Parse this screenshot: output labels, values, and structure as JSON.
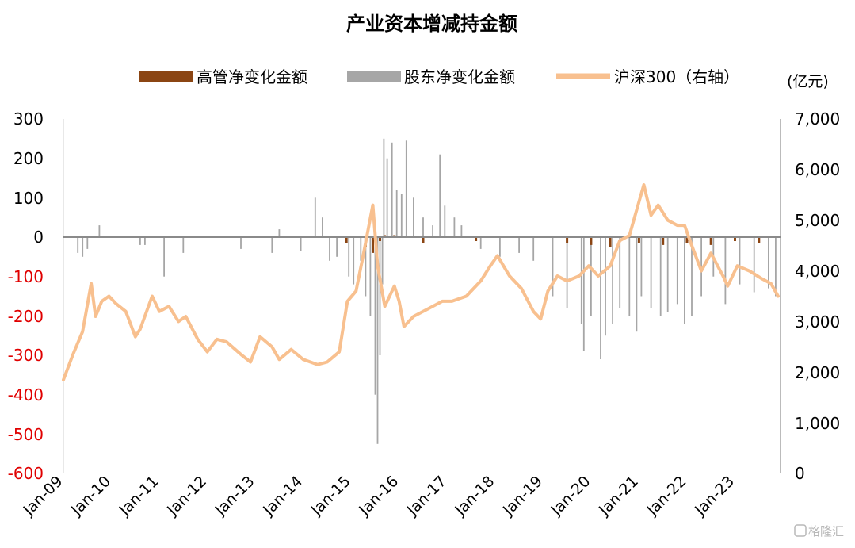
{
  "chart_data": {
    "type": "bar+line",
    "title": "产业资本增减持金额",
    "unit_label": "(亿元)",
    "legend": [
      {
        "label": "高管净变化金额",
        "kind": "bar",
        "color": "#8B4513"
      },
      {
        "label": "股东净变化金额",
        "kind": "bar",
        "color": "#A6A6A6"
      },
      {
        "label": "沪深300（右轴）",
        "kind": "line",
        "color": "#F8C08F"
      }
    ],
    "y_left": {
      "min": -600,
      "max": 300,
      "ticks": [
        300,
        200,
        100,
        0,
        -100,
        -200,
        -300,
        -400,
        -500,
        -600
      ],
      "negative_color": "#E00000"
    },
    "y_right": {
      "min": 0,
      "max": 7000,
      "ticks": [
        "7,000",
        "6,000",
        "5,000",
        "4,000",
        "3,000",
        "2,000",
        "1,000",
        "0"
      ]
    },
    "x_ticks": [
      "Jan-09",
      "Jan-10",
      "Jan-11",
      "Jan-12",
      "Jan-13",
      "Jan-14",
      "Jan-15",
      "Jan-16",
      "Jan-17",
      "Jan-18",
      "Jan-19",
      "Jan-20",
      "Jan-21",
      "Jan-22",
      "Jan-23"
    ],
    "series": [
      {
        "name": "沪深300（右轴）",
        "axis": "right",
        "points": [
          [
            2009.0,
            1850
          ],
          [
            2009.2,
            2350
          ],
          [
            2009.4,
            2800
          ],
          [
            2009.58,
            3750
          ],
          [
            2009.67,
            3100
          ],
          [
            2009.8,
            3400
          ],
          [
            2009.95,
            3500
          ],
          [
            2010.1,
            3350
          ],
          [
            2010.3,
            3200
          ],
          [
            2010.5,
            2700
          ],
          [
            2010.6,
            2850
          ],
          [
            2010.85,
            3500
          ],
          [
            2011.0,
            3200
          ],
          [
            2011.2,
            3300
          ],
          [
            2011.4,
            3000
          ],
          [
            2011.55,
            3100
          ],
          [
            2011.8,
            2650
          ],
          [
            2012.0,
            2400
          ],
          [
            2012.2,
            2650
          ],
          [
            2012.4,
            2600
          ],
          [
            2012.7,
            2350
          ],
          [
            2012.9,
            2200
          ],
          [
            2013.1,
            2700
          ],
          [
            2013.35,
            2500
          ],
          [
            2013.5,
            2250
          ],
          [
            2013.75,
            2450
          ],
          [
            2014.0,
            2250
          ],
          [
            2014.3,
            2150
          ],
          [
            2014.5,
            2200
          ],
          [
            2014.75,
            2400
          ],
          [
            2014.92,
            3400
          ],
          [
            2015.1,
            3600
          ],
          [
            2015.25,
            4300
          ],
          [
            2015.45,
            5300
          ],
          [
            2015.55,
            4100
          ],
          [
            2015.7,
            3300
          ],
          [
            2015.9,
            3700
          ],
          [
            2016.0,
            3400
          ],
          [
            2016.1,
            2900
          ],
          [
            2016.3,
            3100
          ],
          [
            2016.6,
            3250
          ],
          [
            2016.9,
            3400
          ],
          [
            2017.1,
            3400
          ],
          [
            2017.4,
            3500
          ],
          [
            2017.7,
            3800
          ],
          [
            2017.9,
            4100
          ],
          [
            2018.05,
            4300
          ],
          [
            2018.3,
            3900
          ],
          [
            2018.55,
            3650
          ],
          [
            2018.8,
            3200
          ],
          [
            2018.95,
            3050
          ],
          [
            2019.1,
            3600
          ],
          [
            2019.3,
            3900
          ],
          [
            2019.5,
            3800
          ],
          [
            2019.75,
            3900
          ],
          [
            2019.95,
            4100
          ],
          [
            2020.15,
            3900
          ],
          [
            2020.4,
            4100
          ],
          [
            2020.6,
            4600
          ],
          [
            2020.8,
            4700
          ],
          [
            2020.95,
            5200
          ],
          [
            2021.1,
            5700
          ],
          [
            2021.25,
            5100
          ],
          [
            2021.4,
            5300
          ],
          [
            2021.6,
            5000
          ],
          [
            2021.8,
            4900
          ],
          [
            2021.95,
            4900
          ],
          [
            2022.1,
            4500
          ],
          [
            2022.3,
            4000
          ],
          [
            2022.5,
            4350
          ],
          [
            2022.75,
            3900
          ],
          [
            2022.85,
            3700
          ],
          [
            2023.05,
            4100
          ],
          [
            2023.3,
            4000
          ],
          [
            2023.55,
            3850
          ],
          [
            2023.75,
            3750
          ],
          [
            2023.9,
            3500
          ]
        ]
      },
      {
        "name": "股东净变化金额",
        "axis": "left",
        "spikes": [
          [
            2009.3,
            -40
          ],
          [
            2009.4,
            -50
          ],
          [
            2009.5,
            -30
          ],
          [
            2009.75,
            30
          ],
          [
            2010.6,
            -20
          ],
          [
            2010.7,
            -20
          ],
          [
            2011.1,
            -100
          ],
          [
            2011.5,
            -40
          ],
          [
            2012.7,
            -30
          ],
          [
            2013.35,
            -40
          ],
          [
            2013.5,
            20
          ],
          [
            2013.95,
            -35
          ],
          [
            2014.25,
            100
          ],
          [
            2014.4,
            50
          ],
          [
            2014.55,
            -60
          ],
          [
            2014.7,
            -50
          ],
          [
            2014.95,
            -100
          ],
          [
            2015.05,
            -120
          ],
          [
            2015.2,
            -60
          ],
          [
            2015.3,
            -150
          ],
          [
            2015.4,
            -200
          ],
          [
            2015.5,
            -400
          ],
          [
            2015.55,
            -525
          ],
          [
            2015.6,
            -300
          ],
          [
            2015.65,
            -120
          ],
          [
            2015.68,
            250
          ],
          [
            2015.75,
            200
          ],
          [
            2015.85,
            240
          ],
          [
            2015.95,
            120
          ],
          [
            2016.05,
            110
          ],
          [
            2016.15,
            245
          ],
          [
            2016.3,
            100
          ],
          [
            2016.5,
            50
          ],
          [
            2016.7,
            30
          ],
          [
            2016.85,
            210
          ],
          [
            2016.95,
            80
          ],
          [
            2017.15,
            50
          ],
          [
            2017.3,
            30
          ],
          [
            2017.7,
            -30
          ],
          [
            2018.1,
            -50
          ],
          [
            2018.5,
            -40
          ],
          [
            2018.8,
            -60
          ],
          [
            2019.2,
            -150
          ],
          [
            2019.5,
            -180
          ],
          [
            2019.8,
            -220
          ],
          [
            2019.85,
            -290
          ],
          [
            2020.0,
            -200
          ],
          [
            2020.2,
            -310
          ],
          [
            2020.3,
            -250
          ],
          [
            2020.45,
            -220
          ],
          [
            2020.6,
            -180
          ],
          [
            2020.8,
            -200
          ],
          [
            2020.95,
            -240
          ],
          [
            2021.05,
            -150
          ],
          [
            2021.25,
            -180
          ],
          [
            2021.45,
            -200
          ],
          [
            2021.6,
            -190
          ],
          [
            2021.8,
            -170
          ],
          [
            2021.95,
            -220
          ],
          [
            2022.1,
            -200
          ],
          [
            2022.3,
            -150
          ],
          [
            2022.55,
            -100
          ],
          [
            2022.8,
            -170
          ],
          [
            2023.1,
            -120
          ],
          [
            2023.4,
            -140
          ],
          [
            2023.7,
            -130
          ],
          [
            2023.85,
            -150
          ]
        ]
      },
      {
        "name": "高管净变化金额",
        "axis": "left",
        "spikes": [
          [
            2014.9,
            -15
          ],
          [
            2015.3,
            -25
          ],
          [
            2015.45,
            -40
          ],
          [
            2015.6,
            -10
          ],
          [
            2015.7,
            5
          ],
          [
            2015.9,
            5
          ],
          [
            2016.5,
            -15
          ],
          [
            2017.6,
            -10
          ],
          [
            2019.5,
            -15
          ],
          [
            2020.0,
            -20
          ],
          [
            2020.4,
            -25
          ],
          [
            2021.0,
            -15
          ],
          [
            2021.5,
            -20
          ],
          [
            2022.0,
            -15
          ],
          [
            2022.5,
            -20
          ],
          [
            2023.0,
            -10
          ],
          [
            2023.5,
            -15
          ]
        ]
      }
    ],
    "watermark": "格隆汇"
  }
}
